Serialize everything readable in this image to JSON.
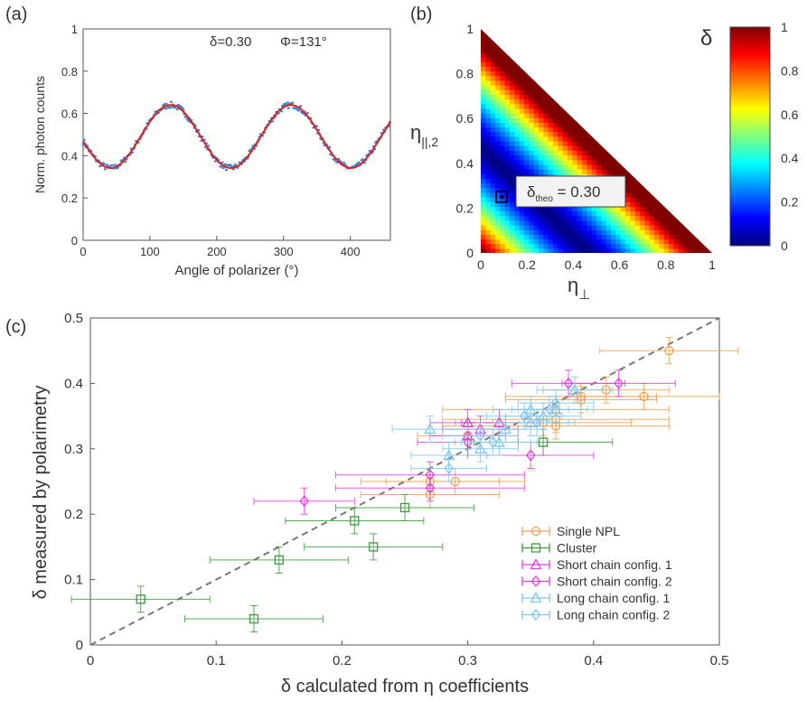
{
  "chart_data": [
    {
      "panel": "(a)",
      "type": "line",
      "xlabel": "Angle of polarizer (°)",
      "ylabel": "Norm. photon counts",
      "xlim": [
        0,
        460
      ],
      "ylim": [
        0,
        1
      ],
      "xticks": [
        "0",
        "100",
        "200",
        "300",
        "400"
      ],
      "yticks": [
        "0",
        "0.2",
        "0.4",
        "0.6",
        "0.8",
        "1"
      ],
      "annotations": [
        "δ=0.30",
        "Φ=131°"
      ],
      "fit": {
        "color": "#e02020",
        "mean": 0.491,
        "amplitude": 0.149,
        "phase_deg": 131
      },
      "measured": {
        "color": "#3a7fd0",
        "x_range": [
          0,
          460
        ],
        "noise": 0.015
      }
    },
    {
      "panel": "(b)",
      "type": "heatmap",
      "xlabel": "η",
      "xlabel_sub": "⊥",
      "ylabel": "η",
      "ylabel_sub": "||,2",
      "xlim": [
        0,
        1
      ],
      "ylim": [
        0,
        1
      ],
      "xticks": [
        "0",
        "0.2",
        "0.4",
        "0.6",
        "0.8",
        "1"
      ],
      "yticks": [
        "0",
        "0.2",
        "0.4",
        "0.6",
        "0.8",
        "1"
      ],
      "colorbar": {
        "label": "δ",
        "range": [
          0,
          1
        ],
        "ticks": [
          "0",
          "0.2",
          "0.4",
          "0.6",
          "0.8",
          "1"
        ],
        "colormap": "jet"
      },
      "marker": {
        "x": 0.09,
        "y": 0.25,
        "label_main": "δ",
        "label_sub": "theo",
        "label_value": " = 0.30"
      }
    },
    {
      "panel": "(c)",
      "type": "scatter",
      "xlabel": "δ calculated from η coefficients",
      "ylabel": "δ measured by polarimetry",
      "xlim": [
        0,
        0.5
      ],
      "ylim": [
        0,
        0.5
      ],
      "xticks": [
        "0",
        "0.1",
        "0.2",
        "0.3",
        "0.4",
        "0.5"
      ],
      "yticks": [
        "0",
        "0.1",
        "0.2",
        "0.3",
        "0.4",
        "0.5"
      ],
      "grid": false,
      "legend": "bottom-right",
      "reference_line": {
        "style": "dashed",
        "color": "#777777",
        "x": [
          0,
          0.5
        ],
        "y": [
          0,
          0.5
        ]
      },
      "series": [
        {
          "name": "Single NPL",
          "marker": "circle",
          "color": "#f0a050",
          "points": [
            [
              0.46,
              0.45,
              0.055,
              0.02
            ],
            [
              0.44,
              0.38,
              0.06,
              0.02
            ],
            [
              0.41,
              0.39,
              0.05,
              0.02
            ],
            [
              0.39,
              0.38,
              0.06,
              0.02
            ],
            [
              0.39,
              0.375,
              0.06,
              0.02
            ],
            [
              0.37,
              0.36,
              0.09,
              0.02
            ],
            [
              0.37,
              0.345,
              0.09,
              0.02
            ],
            [
              0.37,
              0.335,
              0.09,
              0.02
            ],
            [
              0.36,
              0.34,
              0.07,
              0.02
            ],
            [
              0.3,
              0.32,
              0.04,
              0.02
            ],
            [
              0.29,
              0.25,
              0.055,
              0.02
            ],
            [
              0.27,
              0.25,
              0.055,
              0.02
            ],
            [
              0.27,
              0.23,
              0.055,
              0.02
            ]
          ]
        },
        {
          "name": "Cluster",
          "marker": "square",
          "color": "#3d9a3d",
          "points": [
            [
              0.36,
              0.31,
              0.055,
              0.02
            ],
            [
              0.25,
              0.21,
              0.055,
              0.02
            ],
            [
              0.21,
              0.19,
              0.055,
              0.02
            ],
            [
              0.225,
              0.15,
              0.055,
              0.02
            ],
            [
              0.15,
              0.13,
              0.055,
              0.02
            ],
            [
              0.04,
              0.07,
              0.055,
              0.02
            ],
            [
              0.13,
              0.04,
              0.055,
              0.02
            ]
          ]
        },
        {
          "name": "Short chain config. 1",
          "marker": "triangle",
          "color": "#e040e0",
          "points": [
            [
              0.3,
              0.34,
              0.03,
              0.02
            ],
            [
              0.325,
              0.34,
              0.03,
              0.02
            ],
            [
              0.3,
              0.32,
              0.03,
              0.02
            ],
            [
              0.31,
              0.33,
              0.03,
              0.02
            ]
          ]
        },
        {
          "name": "Short chain config. 2",
          "marker": "diamond",
          "color": "#e040e0",
          "points": [
            [
              0.38,
              0.4,
              0.045,
              0.02
            ],
            [
              0.42,
              0.4,
              0.045,
              0.02
            ],
            [
              0.3,
              0.31,
              0.04,
              0.02
            ],
            [
              0.27,
              0.24,
              0.075,
              0.02
            ],
            [
              0.27,
              0.26,
              0.075,
              0.02
            ],
            [
              0.17,
              0.22,
              0.04,
              0.02
            ],
            [
              0.35,
              0.29,
              0.05,
              0.02
            ]
          ]
        },
        {
          "name": "Long chain config. 1",
          "marker": "triangle",
          "color": "#7ec8f0",
          "points": [
            [
              0.27,
              0.33,
              0.03,
              0.02
            ],
            [
              0.285,
              0.29,
              0.03,
              0.02
            ],
            [
              0.31,
              0.3,
              0.03,
              0.02
            ],
            [
              0.33,
              0.33,
              0.03,
              0.02
            ],
            [
              0.35,
              0.34,
              0.03,
              0.02
            ],
            [
              0.36,
              0.35,
              0.03,
              0.02
            ],
            [
              0.35,
              0.36,
              0.03,
              0.02
            ],
            [
              0.385,
              0.39,
              0.03,
              0.02
            ],
            [
              0.325,
              0.31,
              0.03,
              0.02
            ],
            [
              0.37,
              0.36,
              0.03,
              0.02
            ]
          ]
        },
        {
          "name": "Long chain config. 2",
          "marker": "diamond",
          "color": "#7ec8f0",
          "points": [
            [
              0.285,
              0.27,
              0.03,
              0.02
            ],
            [
              0.31,
              0.32,
              0.03,
              0.02
            ],
            [
              0.32,
              0.31,
              0.03,
              0.02
            ],
            [
              0.345,
              0.35,
              0.03,
              0.02
            ],
            [
              0.355,
              0.34,
              0.03,
              0.02
            ],
            [
              0.37,
              0.37,
              0.03,
              0.02
            ],
            [
              0.365,
              0.36,
              0.03,
              0.02
            ]
          ]
        }
      ]
    }
  ]
}
